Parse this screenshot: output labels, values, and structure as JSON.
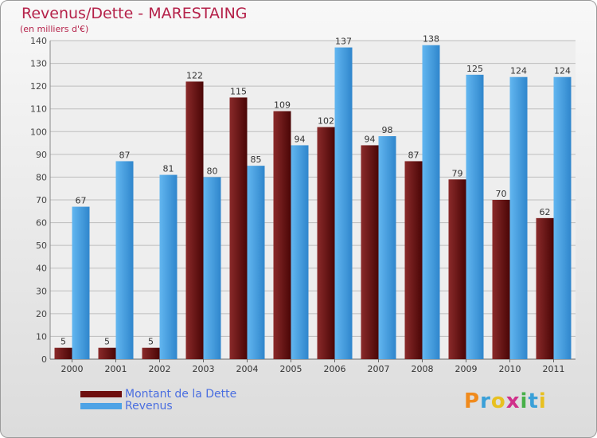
{
  "header": {
    "title": "Revenus/Dette - MARESTAING",
    "subtitle": "(en milliers d'€)"
  },
  "legend": {
    "items": [
      {
        "label": "Montant de la Dette",
        "color": "#6e0f0f"
      },
      {
        "label": "Revenus",
        "color": "#4da3e6"
      }
    ]
  },
  "logo": {
    "text": "Proxiti",
    "colors": [
      "#f08a1c",
      "#3aa0d8",
      "#e8c020",
      "#d0308a",
      "#48b048",
      "#3aa0d8",
      "#e8c020"
    ]
  },
  "chart_data": {
    "type": "bar",
    "categories": [
      "2000",
      "2001",
      "2002",
      "2003",
      "2004",
      "2005",
      "2006",
      "2007",
      "2008",
      "2009",
      "2010",
      "2011"
    ],
    "series": [
      {
        "name": "Montant de la Dette",
        "color": "#6e0f0f",
        "values": [
          5,
          5,
          5,
          122,
          115,
          109,
          102,
          94,
          87,
          79,
          70,
          62
        ]
      },
      {
        "name": "Revenus",
        "color": "#4da3e6",
        "values": [
          67,
          87,
          81,
          80,
          85,
          94,
          137,
          98,
          138,
          125,
          124,
          124
        ]
      }
    ],
    "yticks": [
      0,
      10,
      20,
      30,
      40,
      50,
      60,
      70,
      80,
      90,
      100,
      110,
      120,
      130,
      140
    ],
    "ylim": [
      0,
      140
    ],
    "grid": true,
    "data_labels": true
  }
}
